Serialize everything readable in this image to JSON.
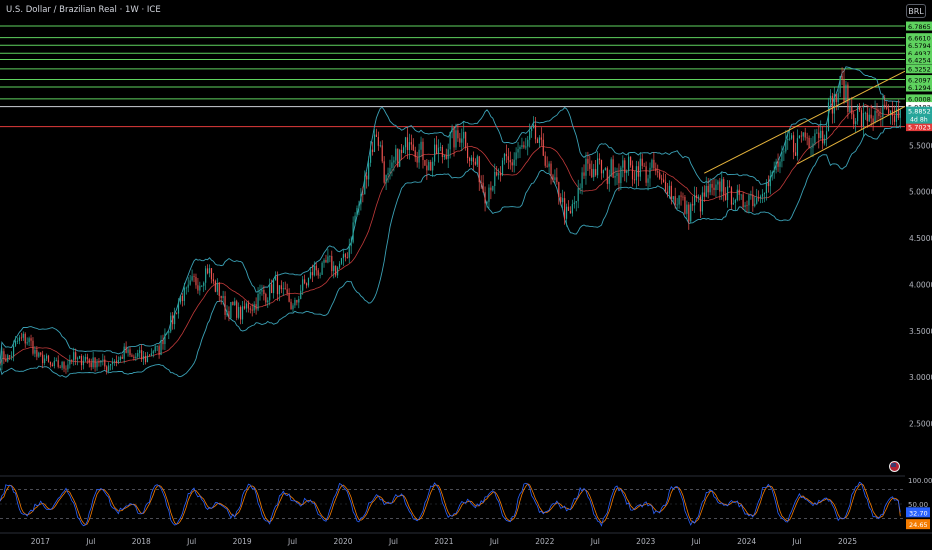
{
  "header": {
    "title": "U.S. Dollar / Brazilian Real · 1W · ICE",
    "currency": "BRL"
  },
  "colors": {
    "background": "#000000",
    "candle_up": "#26a69a",
    "candle_down": "#ef5350",
    "bollinger": "#3aa0b5",
    "basis": "#c23a3a",
    "resistance": "#5fd35f",
    "support": "#e23b3b",
    "channel": "#e6b43c",
    "rsi_k": "#2962ff",
    "rsi_d": "#f57c00"
  },
  "price_axis": {
    "range": [
      2.0,
      6.83
    ],
    "ticks": [
      "2.5000",
      "3.0000",
      "3.5000",
      "4.0000",
      "4.5000",
      "5.0000",
      "5.5000"
    ]
  },
  "levels": [
    {
      "value": 6.7865,
      "label": "6.7865",
      "kind": "resistance"
    },
    {
      "value": 6.661,
      "label": "6.6610",
      "kind": "resistance"
    },
    {
      "value": 6.5794,
      "label": "6.5794",
      "kind": "resistance"
    },
    {
      "value": 6.4937,
      "label": "6.4937",
      "kind": "resistance"
    },
    {
      "value": 6.4254,
      "label": "6.4254",
      "kind": "resistance"
    },
    {
      "value": 6.3252,
      "label": "6.3252",
      "kind": "resistance"
    },
    {
      "value": 6.2097,
      "label": "6.2097",
      "kind": "resistance"
    },
    {
      "value": 6.1294,
      "label": "6.1294",
      "kind": "resistance"
    },
    {
      "value": 6.0008,
      "label": "6.0008",
      "kind": "resistance"
    },
    {
      "value": 5.9182,
      "label": "5.9182",
      "kind": "neutral"
    },
    {
      "value": 5.7023,
      "label": "5.7023",
      "kind": "support"
    }
  ],
  "last_price": {
    "value": 5.8852,
    "label": "5.8852",
    "countdown": "4d 8h"
  },
  "time_axis": {
    "labels": [
      "2017",
      "Jul",
      "2018",
      "Jul",
      "2019",
      "Jul",
      "2020",
      "Jul",
      "2021",
      "Jul",
      "2022",
      "Jul",
      "2023",
      "Jul",
      "2024",
      "Jul",
      "2025"
    ]
  },
  "rsi": {
    "ticks": [
      "100.00",
      "50.00"
    ],
    "value_k": "32.70",
    "value_d": "24.65",
    "levels": [
      20,
      80
    ]
  },
  "chart_data": {
    "type": "candlestick",
    "title": "U.S. Dollar / Brazilian Real · 1W · ICE",
    "anchors": [
      [
        "2016-09",
        3.2
      ],
      [
        "2016-11",
        3.45
      ],
      [
        "2017-01",
        3.2
      ],
      [
        "2017-03",
        3.1
      ],
      [
        "2017-05",
        3.2
      ],
      [
        "2017-07",
        3.18
      ],
      [
        "2017-09",
        3.13
      ],
      [
        "2017-11",
        3.25
      ],
      [
        "2018-01",
        3.2
      ],
      [
        "2018-03",
        3.3
      ],
      [
        "2018-05",
        3.7
      ],
      [
        "2018-06",
        3.9
      ],
      [
        "2018-09",
        4.15
      ],
      [
        "2018-11",
        3.75
      ],
      [
        "2019-01",
        3.7
      ],
      [
        "2019-03",
        3.85
      ],
      [
        "2019-05",
        4.0
      ],
      [
        "2019-07",
        3.75
      ],
      [
        "2019-09",
        4.1
      ],
      [
        "2019-11",
        4.2
      ],
      [
        "2020-01",
        4.2
      ],
      [
        "2020-03",
        4.9
      ],
      [
        "2020-05",
        5.7
      ],
      [
        "2020-06",
        5.1
      ],
      [
        "2020-09",
        5.6
      ],
      [
        "2020-11",
        5.3
      ],
      [
        "2021-01",
        5.45
      ],
      [
        "2021-03",
        5.65
      ],
      [
        "2021-06",
        5.0
      ],
      [
        "2021-09",
        5.35
      ],
      [
        "2021-12",
        5.6
      ],
      [
        "2022-02",
        5.1
      ],
      [
        "2022-04",
        4.7
      ],
      [
        "2022-06",
        5.3
      ],
      [
        "2022-08",
        5.2
      ],
      [
        "2022-10",
        5.25
      ],
      [
        "2022-12",
        5.25
      ],
      [
        "2023-02",
        5.2
      ],
      [
        "2023-04",
        5.0
      ],
      [
        "2023-06",
        4.8
      ],
      [
        "2023-08",
        4.95
      ],
      [
        "2023-10",
        5.05
      ],
      [
        "2023-12",
        4.9
      ],
      [
        "2024-02",
        4.95
      ],
      [
        "2024-04",
        5.15
      ],
      [
        "2024-06",
        5.5
      ],
      [
        "2024-08",
        5.6
      ],
      [
        "2024-10",
        5.65
      ],
      [
        "2024-12",
        6.15
      ],
      [
        "2025-02",
        5.8
      ]
    ],
    "last": 5.8852
  }
}
